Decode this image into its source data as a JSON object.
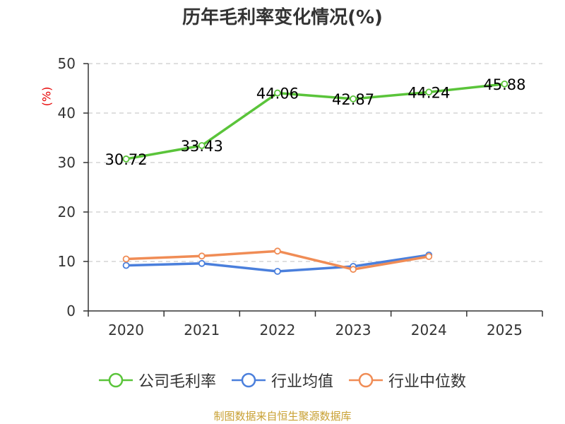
{
  "title": "历年毛利率变化情况(%)",
  "y_unit": "(%)",
  "source": "制图数据来自恒生聚源数据库",
  "colors": {
    "company": "#5ac43a",
    "industry_avg": "#4a7fdc",
    "industry_median": "#f08c55",
    "grid": "#cccccc",
    "axis": "#333333"
  },
  "chart_data": {
    "type": "line",
    "title": "历年毛利率变化情况(%)",
    "xlabel": "",
    "ylabel": "(%)",
    "categories": [
      "2020",
      "2021",
      "2022",
      "2023",
      "2024",
      "2025"
    ],
    "ylim": [
      0,
      50
    ],
    "yticks": [
      0,
      10,
      20,
      30,
      40,
      50
    ],
    "grid": true,
    "legend_position": "bottom",
    "series": [
      {
        "name": "公司毛利率",
        "values": [
          30.72,
          33.43,
          44.06,
          42.87,
          44.24,
          45.88
        ],
        "labels": [
          "30.72",
          "33.43",
          "44.06",
          "42.87",
          "44.24",
          "45.88"
        ]
      },
      {
        "name": "行业均值",
        "values": [
          9.2,
          9.6,
          8.0,
          9.0,
          11.3,
          null
        ]
      },
      {
        "name": "行业中位数",
        "values": [
          10.5,
          11.1,
          12.1,
          8.4,
          11.0,
          null
        ]
      }
    ]
  }
}
